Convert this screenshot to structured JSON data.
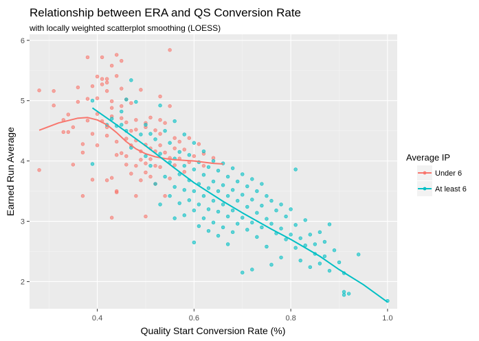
{
  "chart_data": {
    "type": "scatter",
    "title": "Relationship between ERA and QS Conversion Rate",
    "subtitle": "with locally weighted scatterplot smoothing (LOESS)",
    "xlabel": "Quality Start Conversion Rate (%)",
    "ylabel": "Earned Run Average",
    "xlim": [
      0.26,
      1.02
    ],
    "ylim": [
      1.55,
      6.1
    ],
    "x_ticks": [
      0.4,
      0.6,
      0.8,
      1.0
    ],
    "x_tick_labels": [
      "0.4",
      "0.6",
      "0.8",
      "1.0"
    ],
    "y_ticks": [
      2,
      3,
      4,
      5,
      6
    ],
    "y_tick_labels": [
      "2",
      "3",
      "4",
      "5",
      "6"
    ],
    "grid": true,
    "legend": {
      "title": "Average IP",
      "position": "right"
    },
    "series": [
      {
        "name": "Under 6",
        "color": "#F8766D",
        "points": [
          [
            0.28,
            5.17
          ],
          [
            0.28,
            3.85
          ],
          [
            0.31,
            4.92
          ],
          [
            0.31,
            5.16
          ],
          [
            0.33,
            4.48
          ],
          [
            0.33,
            4.68
          ],
          [
            0.34,
            4.48
          ],
          [
            0.34,
            4.77
          ],
          [
            0.35,
            3.94
          ],
          [
            0.35,
            4.56
          ],
          [
            0.36,
            5.22
          ],
          [
            0.36,
            4.98
          ],
          [
            0.37,
            3.42
          ],
          [
            0.37,
            4.28
          ],
          [
            0.37,
            4.14
          ],
          [
            0.38,
            5.72
          ],
          [
            0.38,
            4.67
          ],
          [
            0.38,
            5.03
          ],
          [
            0.39,
            4.45
          ],
          [
            0.39,
            3.69
          ],
          [
            0.39,
            5.24
          ],
          [
            0.4,
            5.04
          ],
          [
            0.4,
            5.4
          ],
          [
            0.4,
            4.78
          ],
          [
            0.4,
            4.26
          ],
          [
            0.41,
            5.72
          ],
          [
            0.41,
            5.36
          ],
          [
            0.41,
            4.66
          ],
          [
            0.41,
            5.27
          ],
          [
            0.42,
            5.36
          ],
          [
            0.42,
            5.16
          ],
          [
            0.42,
            4.42
          ],
          [
            0.42,
            3.68
          ],
          [
            0.42,
            4.56
          ],
          [
            0.42,
            5.3
          ],
          [
            0.43,
            3.06
          ],
          [
            0.43,
            4.99
          ],
          [
            0.43,
            4.74
          ],
          [
            0.43,
            3.72
          ],
          [
            0.43,
            4.88
          ],
          [
            0.43,
            5.58
          ],
          [
            0.44,
            3.48
          ],
          [
            0.44,
            4.32
          ],
          [
            0.44,
            5.76
          ],
          [
            0.44,
            4.1
          ],
          [
            0.44,
            5.41
          ],
          [
            0.44,
            3.5
          ],
          [
            0.45,
            4.13
          ],
          [
            0.45,
            5.2
          ],
          [
            0.45,
            4.71
          ],
          [
            0.45,
            4.91
          ],
          [
            0.45,
            5.66
          ],
          [
            0.46,
            5.02
          ],
          [
            0.46,
            4.08
          ],
          [
            0.46,
            4.37
          ],
          [
            0.46,
            3.94
          ],
          [
            0.46,
            4.64
          ],
          [
            0.47,
            4.96
          ],
          [
            0.47,
            3.79
          ],
          [
            0.47,
            4.26
          ],
          [
            0.47,
            4.5
          ],
          [
            0.48,
            4.52
          ],
          [
            0.48,
            3.92
          ],
          [
            0.48,
            4.34
          ],
          [
            0.48,
            3.42
          ],
          [
            0.48,
            4.68
          ],
          [
            0.49,
            5.18
          ],
          [
            0.49,
            4.16
          ],
          [
            0.49,
            3.68
          ],
          [
            0.49,
            4.02
          ],
          [
            0.5,
            4.63
          ],
          [
            0.5,
            4.56
          ],
          [
            0.5,
            3.96
          ],
          [
            0.5,
            4.27
          ],
          [
            0.5,
            3.08
          ],
          [
            0.5,
            3.81
          ],
          [
            0.51,
            4.72
          ],
          [
            0.51,
            4.03
          ],
          [
            0.51,
            4.21
          ],
          [
            0.51,
            3.74
          ],
          [
            0.52,
            3.92
          ],
          [
            0.52,
            4.51
          ],
          [
            0.52,
            4.16
          ],
          [
            0.52,
            3.62
          ],
          [
            0.53,
            5.07
          ],
          [
            0.53,
            4.68
          ],
          [
            0.53,
            4.45
          ],
          [
            0.53,
            4.26
          ],
          [
            0.53,
            3.9
          ],
          [
            0.54,
            4.14
          ],
          [
            0.54,
            3.42
          ],
          [
            0.54,
            4.63
          ],
          [
            0.55,
            4.91
          ],
          [
            0.55,
            4.05
          ],
          [
            0.55,
            3.71
          ],
          [
            0.55,
            5.84
          ],
          [
            0.56,
            4.38
          ],
          [
            0.56,
            4.21
          ],
          [
            0.56,
            3.93
          ],
          [
            0.57,
            4.32
          ],
          [
            0.57,
            4.04
          ],
          [
            0.58,
            4.19
          ],
          [
            0.58,
            3.82
          ],
          [
            0.59,
            4.38
          ],
          [
            0.59,
            3.98
          ],
          [
            0.6,
            4.08
          ],
          [
            0.61,
            4.28
          ],
          [
            0.62,
            4.12
          ],
          [
            0.62,
            3.92
          ],
          [
            0.64,
            4.05
          ]
        ],
        "smooth": [
          [
            0.28,
            4.51
          ],
          [
            0.32,
            4.63
          ],
          [
            0.36,
            4.71
          ],
          [
            0.38,
            4.72
          ],
          [
            0.4,
            4.68
          ],
          [
            0.42,
            4.6
          ],
          [
            0.44,
            4.47
          ],
          [
            0.46,
            4.32
          ],
          [
            0.48,
            4.2
          ],
          [
            0.5,
            4.12
          ],
          [
            0.52,
            4.07
          ],
          [
            0.54,
            4.04
          ],
          [
            0.56,
            4.02
          ],
          [
            0.58,
            4.01
          ],
          [
            0.6,
            4.0
          ],
          [
            0.62,
            3.98
          ],
          [
            0.64,
            3.96
          ],
          [
            0.66,
            3.95
          ]
        ]
      },
      {
        "name": "At least 6",
        "color": "#00BFC4",
        "points": [
          [
            0.39,
            5.0
          ],
          [
            0.39,
            3.95
          ],
          [
            0.42,
            4.6
          ],
          [
            0.43,
            4.7
          ],
          [
            0.44,
            4.58
          ],
          [
            0.45,
            4.82
          ],
          [
            0.45,
            4.6
          ],
          [
            0.46,
            5.02
          ],
          [
            0.46,
            4.5
          ],
          [
            0.47,
            5.34
          ],
          [
            0.47,
            4.22
          ],
          [
            0.48,
            4.98
          ],
          [
            0.49,
            4.44
          ],
          [
            0.5,
            4.6
          ],
          [
            0.5,
            4.08
          ],
          [
            0.51,
            4.45
          ],
          [
            0.51,
            3.92
          ],
          [
            0.52,
            4.36
          ],
          [
            0.52,
            3.62
          ],
          [
            0.53,
            4.92
          ],
          [
            0.53,
            4.12
          ],
          [
            0.53,
            3.28
          ],
          [
            0.54,
            4.5
          ],
          [
            0.54,
            3.74
          ],
          [
            0.55,
            4.3
          ],
          [
            0.55,
            3.98
          ],
          [
            0.55,
            3.42
          ],
          [
            0.56,
            4.66
          ],
          [
            0.56,
            4.04
          ],
          [
            0.56,
            3.57
          ],
          [
            0.56,
            3.05
          ],
          [
            0.57,
            4.15
          ],
          [
            0.57,
            3.78
          ],
          [
            0.57,
            3.3
          ],
          [
            0.58,
            4.44
          ],
          [
            0.58,
            3.92
          ],
          [
            0.58,
            3.52
          ],
          [
            0.58,
            3.1
          ],
          [
            0.59,
            4.1
          ],
          [
            0.59,
            3.68
          ],
          [
            0.59,
            3.35
          ],
          [
            0.6,
            4.3
          ],
          [
            0.6,
            3.86
          ],
          [
            0.6,
            3.5
          ],
          [
            0.6,
            3.18
          ],
          [
            0.6,
            2.65
          ],
          [
            0.61,
            3.98
          ],
          [
            0.61,
            3.62
          ],
          [
            0.61,
            3.28
          ],
          [
            0.61,
            2.92
          ],
          [
            0.62,
            4.16
          ],
          [
            0.62,
            3.77
          ],
          [
            0.62,
            3.42
          ],
          [
            0.62,
            3.05
          ],
          [
            0.63,
            3.9
          ],
          [
            0.63,
            3.55
          ],
          [
            0.63,
            3.2
          ],
          [
            0.63,
            2.84
          ],
          [
            0.64,
            4.0
          ],
          [
            0.64,
            3.66
          ],
          [
            0.64,
            3.34
          ],
          [
            0.64,
            2.98
          ],
          [
            0.65,
            3.84
          ],
          [
            0.65,
            3.5
          ],
          [
            0.65,
            3.16
          ],
          [
            0.65,
            2.76
          ],
          [
            0.66,
            3.96
          ],
          [
            0.66,
            3.6
          ],
          [
            0.66,
            3.28
          ],
          [
            0.66,
            2.9
          ],
          [
            0.67,
            3.74
          ],
          [
            0.67,
            3.42
          ],
          [
            0.67,
            3.08
          ],
          [
            0.67,
            2.62
          ],
          [
            0.68,
            3.88
          ],
          [
            0.68,
            3.52
          ],
          [
            0.68,
            3.18
          ],
          [
            0.68,
            2.82
          ],
          [
            0.69,
            3.66
          ],
          [
            0.69,
            3.34
          ],
          [
            0.69,
            2.96
          ],
          [
            0.7,
            3.78
          ],
          [
            0.7,
            3.44
          ],
          [
            0.7,
            3.06
          ],
          [
            0.7,
            2.15
          ],
          [
            0.71,
            3.58
          ],
          [
            0.71,
            3.24
          ],
          [
            0.71,
            2.86
          ],
          [
            0.72,
            3.7
          ],
          [
            0.72,
            3.36
          ],
          [
            0.72,
            2.98
          ],
          [
            0.72,
            2.2
          ],
          [
            0.73,
            3.5
          ],
          [
            0.73,
            3.14
          ],
          [
            0.73,
            2.74
          ],
          [
            0.74,
            3.62
          ],
          [
            0.74,
            3.26
          ],
          [
            0.74,
            2.9
          ],
          [
            0.75,
            3.42
          ],
          [
            0.75,
            3.04
          ],
          [
            0.75,
            2.58
          ],
          [
            0.76,
            3.34
          ],
          [
            0.76,
            2.96
          ],
          [
            0.76,
            2.28
          ],
          [
            0.77,
            3.18
          ],
          [
            0.77,
            2.8
          ],
          [
            0.78,
            3.28
          ],
          [
            0.78,
            2.88
          ],
          [
            0.78,
            2.4
          ],
          [
            0.79,
            3.08
          ],
          [
            0.79,
            2.7
          ],
          [
            0.8,
            3.2
          ],
          [
            0.8,
            2.78
          ],
          [
            0.81,
            3.86
          ],
          [
            0.81,
            2.94
          ],
          [
            0.81,
            2.56
          ],
          [
            0.82,
            2.72
          ],
          [
            0.82,
            2.35
          ],
          [
            0.83,
            3.02
          ],
          [
            0.83,
            2.6
          ],
          [
            0.84,
            2.78
          ],
          [
            0.84,
            2.24
          ],
          [
            0.85,
            2.62
          ],
          [
            0.85,
            2.46
          ],
          [
            0.86,
            2.82
          ],
          [
            0.86,
            2.3
          ],
          [
            0.87,
            2.66
          ],
          [
            0.87,
            2.42
          ],
          [
            0.88,
            2.95
          ],
          [
            0.88,
            2.18
          ],
          [
            0.89,
            2.52
          ],
          [
            0.9,
            2.32
          ],
          [
            0.91,
            2.14
          ],
          [
            0.91,
            1.83
          ],
          [
            0.91,
            1.78
          ],
          [
            0.92,
            1.8
          ],
          [
            0.94,
            2.45
          ],
          [
            1.0,
            1.68
          ]
        ],
        "smooth": [
          [
            0.39,
            4.88
          ],
          [
            0.44,
            4.6
          ],
          [
            0.5,
            4.25
          ],
          [
            0.56,
            3.88
          ],
          [
            0.6,
            3.64
          ],
          [
            0.66,
            3.33
          ],
          [
            0.7,
            3.14
          ],
          [
            0.76,
            2.87
          ],
          [
            0.8,
            2.7
          ],
          [
            0.86,
            2.42
          ],
          [
            0.9,
            2.2
          ],
          [
            0.95,
            1.95
          ],
          [
            1.0,
            1.66
          ]
        ]
      }
    ]
  }
}
